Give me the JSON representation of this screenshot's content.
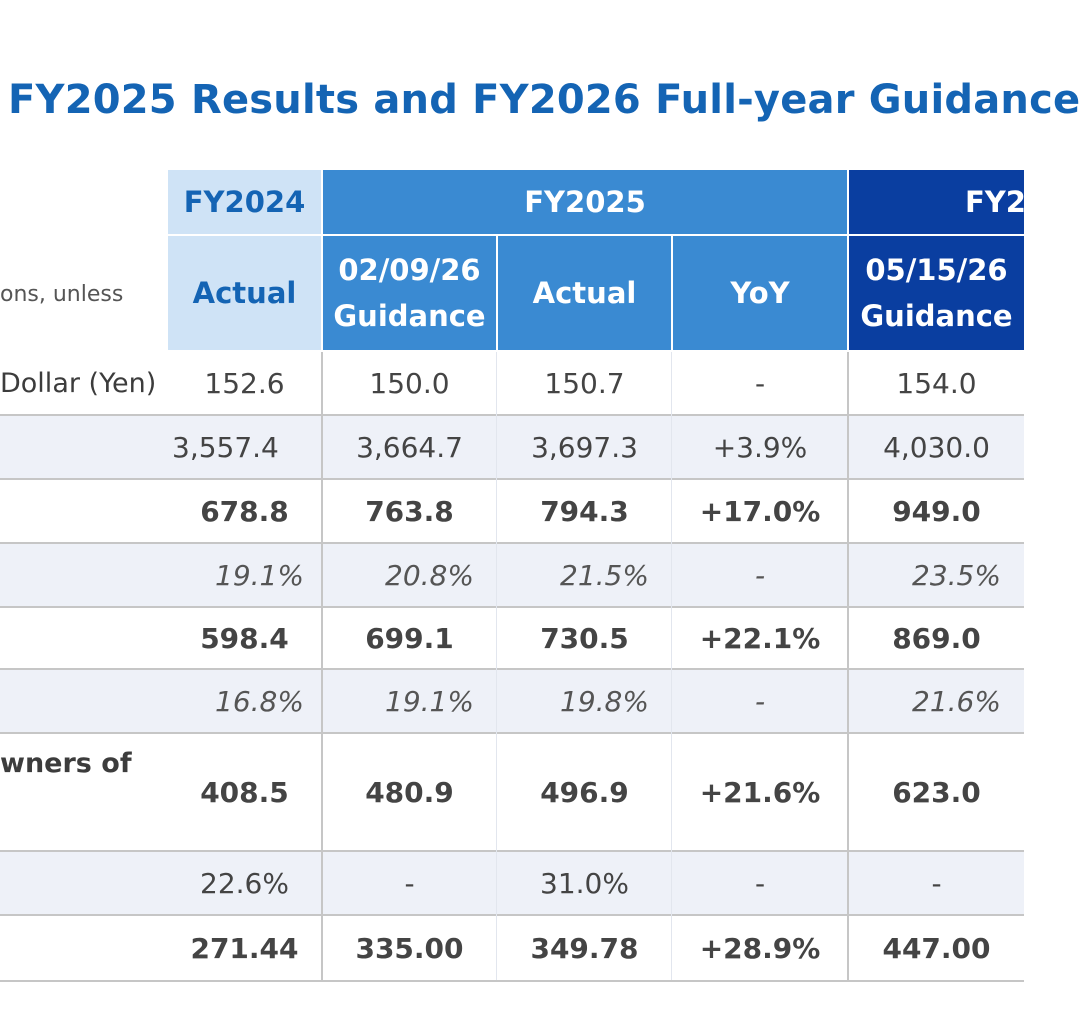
{
  "title": "FY2025 Results and FY2026 Full-year Guidance",
  "unit_note": "ons, unless",
  "header": {
    "fy2024": {
      "label": "FY2024",
      "sub": "Actual"
    },
    "fy2025": {
      "label": "FY2025",
      "guidance": [
        "02/09/26",
        "Guidance"
      ],
      "actual": "Actual",
      "yoy": "YoY"
    },
    "fy2026": {
      "label": "FY2",
      "guidance": [
        "05/15/26",
        "Guidance"
      ]
    }
  },
  "rows": [
    {
      "label": "Dollar (Yen)",
      "style": "normal",
      "values": [
        "152.6",
        "150.0",
        "150.7",
        "-",
        "154.0"
      ]
    },
    {
      "label": "",
      "style": "normal",
      "values": [
        "3,557.4",
        "3,664.7",
        "3,697.3",
        "+3.9%",
        "4,030.0"
      ]
    },
    {
      "label": "",
      "style": "bold",
      "values": [
        "678.8",
        "763.8",
        "794.3",
        "+17.0%",
        "949.0"
      ]
    },
    {
      "label": "",
      "style": "italic",
      "values": [
        "19.1%",
        "20.8%",
        "21.5%",
        "-",
        "23.5%"
      ]
    },
    {
      "label": "",
      "style": "bold",
      "values": [
        "598.4",
        "699.1",
        "730.5",
        "+22.1%",
        "869.0"
      ]
    },
    {
      "label": "",
      "style": "italic",
      "values": [
        "16.8%",
        "19.1%",
        "19.8%",
        "-",
        "21.6%"
      ]
    },
    {
      "label": "wners of",
      "style": "bold",
      "values": [
        "408.5",
        "480.9",
        "496.9",
        "+21.6%",
        "623.0"
      ]
    },
    {
      "label": "",
      "style": "normal",
      "values": [
        "22.6%",
        "-",
        "31.0%",
        "-",
        "-"
      ]
    },
    {
      "label": "",
      "style": "bold",
      "values": [
        "271.44",
        "335.00",
        "349.78",
        "+28.9%",
        "447.00"
      ]
    }
  ],
  "colors": {
    "title": "#1464b4",
    "header_light": "#cfe3f6",
    "header_mid": "#3a8ad2",
    "header_dark": "#0a3ea0",
    "row_alt": "#eef1f8"
  }
}
